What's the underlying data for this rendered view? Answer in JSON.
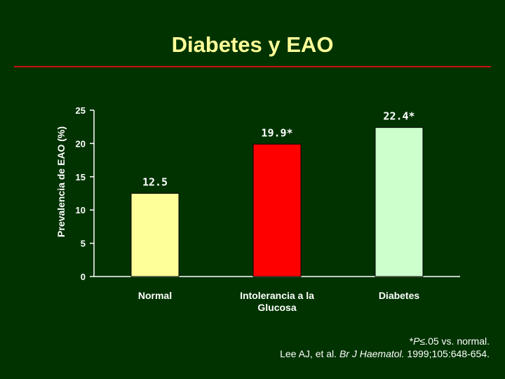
{
  "slide": {
    "title": "Diabetes y EAO",
    "footnote_line1_prefix": "*",
    "footnote_line1_p": "P",
    "footnote_line1_rest": "≤.05 vs. normal.",
    "citation_authors": "Lee AJ, et al. ",
    "citation_journal": "Br J Haematol.",
    "citation_rest": " 1999;105:648-654.",
    "colors": {
      "background": "#003300",
      "title": "#ffff99",
      "rule": "#cc1111"
    }
  },
  "chart_data": {
    "type": "bar",
    "title": "",
    "ylabel": "Prevalencia de EAO (%)",
    "xlabel": "",
    "ylim": [
      0,
      25
    ],
    "yticks": [
      "0",
      "5",
      "10",
      "15",
      "20",
      "25"
    ],
    "grid": false,
    "categories": [
      [
        "Normal"
      ],
      [
        "Intolerancia a la",
        "Glucosa"
      ],
      [
        "Diabetes"
      ]
    ],
    "values": [
      12.5,
      19.9,
      22.4
    ],
    "data_labels": [
      "12.5",
      "19.9*",
      "22.4*"
    ],
    "bar_colors": [
      "#ffff99",
      "#ff0000",
      "#ccffcc"
    ]
  }
}
